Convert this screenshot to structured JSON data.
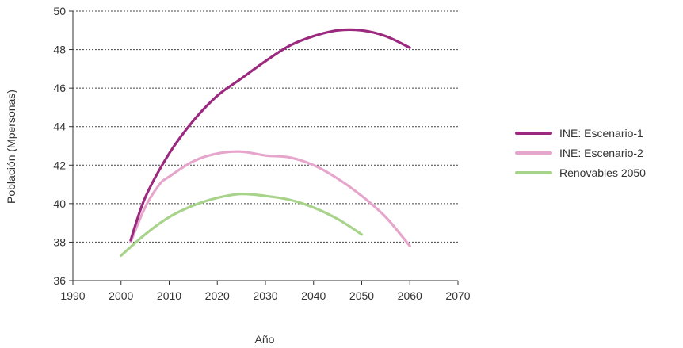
{
  "chart_data": {
    "type": "line",
    "title": "",
    "xlabel": "Año",
    "ylabel": "Población (Mpersonas)",
    "xlim": [
      1990,
      2070
    ],
    "ylim": [
      36,
      50
    ],
    "x_ticks": [
      1990,
      2000,
      2010,
      2020,
      2030,
      2040,
      2050,
      2060,
      2070
    ],
    "y_ticks": [
      36,
      38,
      40,
      42,
      44,
      46,
      48,
      50
    ],
    "grid": "horizontal-dashed",
    "legend_position": "right",
    "series": [
      {
        "name": "INE: Escenario-1",
        "color": "#9b2a7f",
        "x": [
          2002,
          2005,
          2010,
          2015,
          2020,
          2025,
          2030,
          2035,
          2040,
          2045,
          2050,
          2055,
          2060
        ],
        "y": [
          38.1,
          40.3,
          42.6,
          44.3,
          45.6,
          46.5,
          47.4,
          48.2,
          48.7,
          49.0,
          49.0,
          48.7,
          48.1
        ]
      },
      {
        "name": "INE: Escenario-2",
        "color": "#e6a6cb",
        "x": [
          2002,
          2005,
          2008,
          2010,
          2015,
          2020,
          2025,
          2030,
          2035,
          2040,
          2045,
          2050,
          2055,
          2060
        ],
        "y": [
          38.0,
          39.8,
          41.0,
          41.4,
          42.2,
          42.6,
          42.7,
          42.5,
          42.4,
          42.0,
          41.3,
          40.4,
          39.3,
          37.8
        ]
      },
      {
        "name": "Renovables 2050",
        "color": "#a8d38a",
        "x": [
          2000,
          2005,
          2010,
          2015,
          2020,
          2025,
          2030,
          2035,
          2040,
          2045,
          2050
        ],
        "y": [
          37.3,
          38.4,
          39.3,
          39.9,
          40.3,
          40.5,
          40.4,
          40.2,
          39.8,
          39.2,
          38.4
        ]
      }
    ]
  }
}
